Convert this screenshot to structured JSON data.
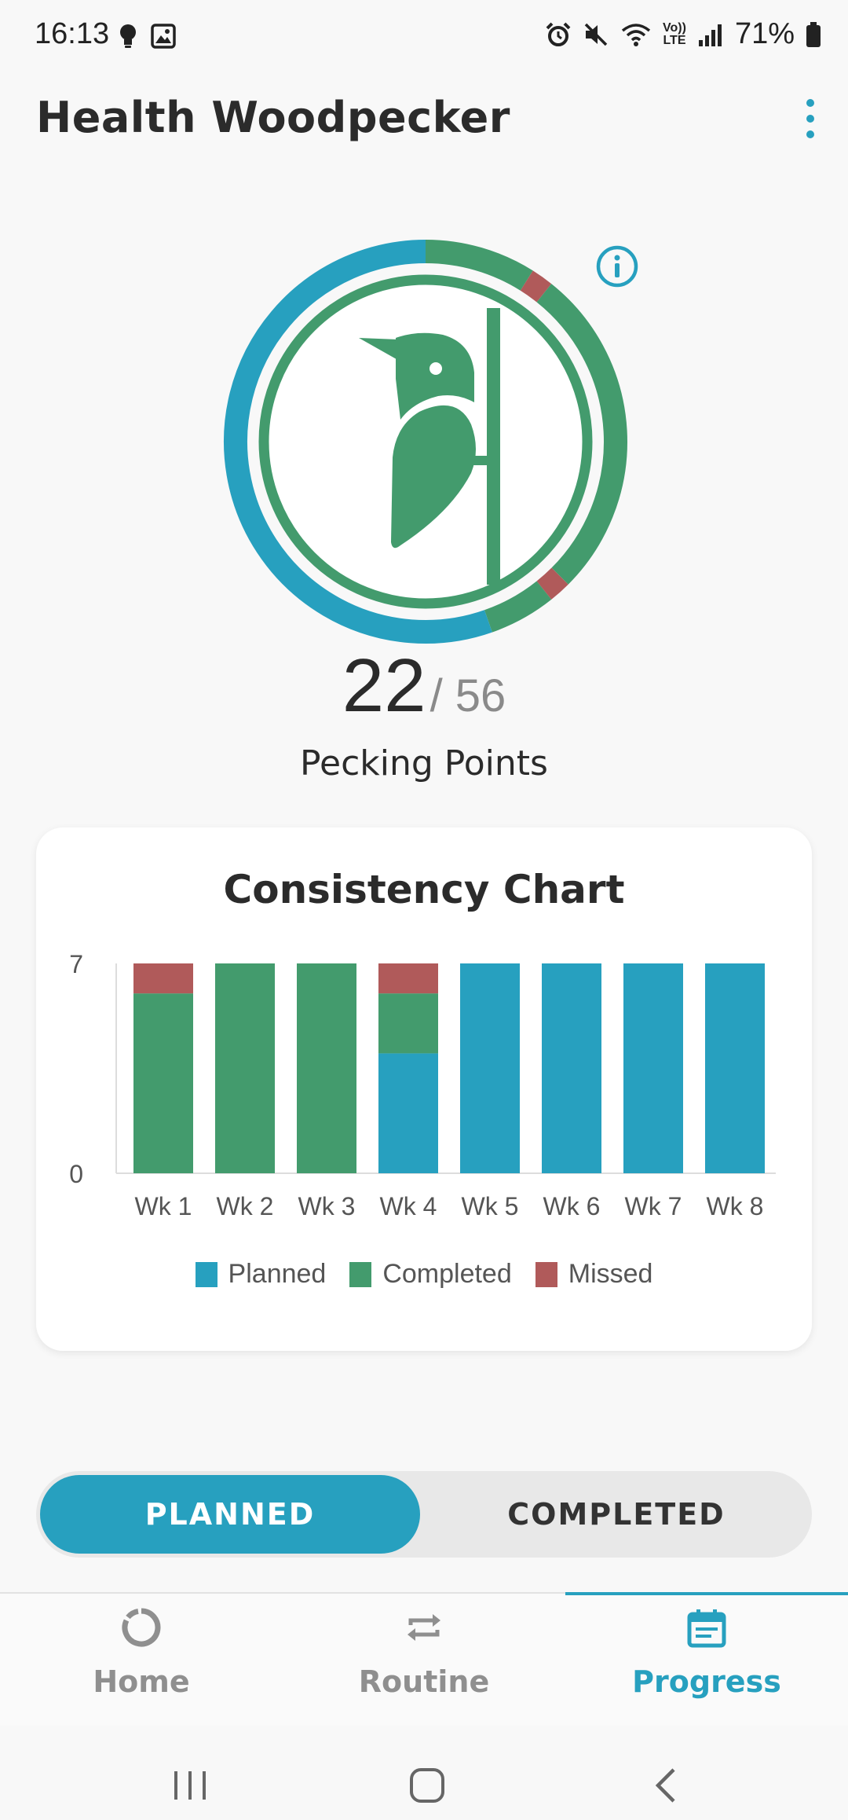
{
  "status_bar": {
    "time": "16:13",
    "battery": "71%",
    "volte_top": "Vo))",
    "volte_bottom": "LTE"
  },
  "app_bar": {
    "title": "Health Woodpecker"
  },
  "score": {
    "value": "22",
    "total": "/ 56",
    "label": "Pecking Points"
  },
  "colors": {
    "planned": "#27a0bf",
    "completed": "#439b6d",
    "missed": "#b05a5a",
    "accent": "#27a0bf"
  },
  "chart_data": {
    "type": "bar",
    "stacked": true,
    "title": "Consistency Chart",
    "categories": [
      "Wk 1",
      "Wk 2",
      "Wk 3",
      "Wk 4",
      "Wk 5",
      "Wk 6",
      "Wk 7",
      "Wk 8"
    ],
    "series": [
      {
        "name": "Planned",
        "color": "#27a0bf",
        "values": [
          0,
          0,
          0,
          4,
          7,
          7,
          7,
          7
        ]
      },
      {
        "name": "Completed",
        "color": "#439b6d",
        "values": [
          6,
          7,
          7,
          2,
          0,
          0,
          0,
          0
        ]
      },
      {
        "name": "Missed",
        "color": "#b05a5a",
        "values": [
          1,
          0,
          0,
          1,
          0,
          0,
          0,
          0
        ]
      }
    ],
    "ylim": [
      0,
      7
    ],
    "yticks": [
      "0",
      "7"
    ],
    "legend_position": "bottom"
  },
  "toggle": {
    "planned_label": "PLANNED",
    "completed_label": "COMPLETED",
    "selected": "planned"
  },
  "bottom_nav": {
    "items": [
      {
        "label": "Home",
        "icon": "home-ring-icon"
      },
      {
        "label": "Routine",
        "icon": "repeat-icon"
      },
      {
        "label": "Progress",
        "icon": "calendar-icon"
      }
    ],
    "selected": "Progress"
  }
}
